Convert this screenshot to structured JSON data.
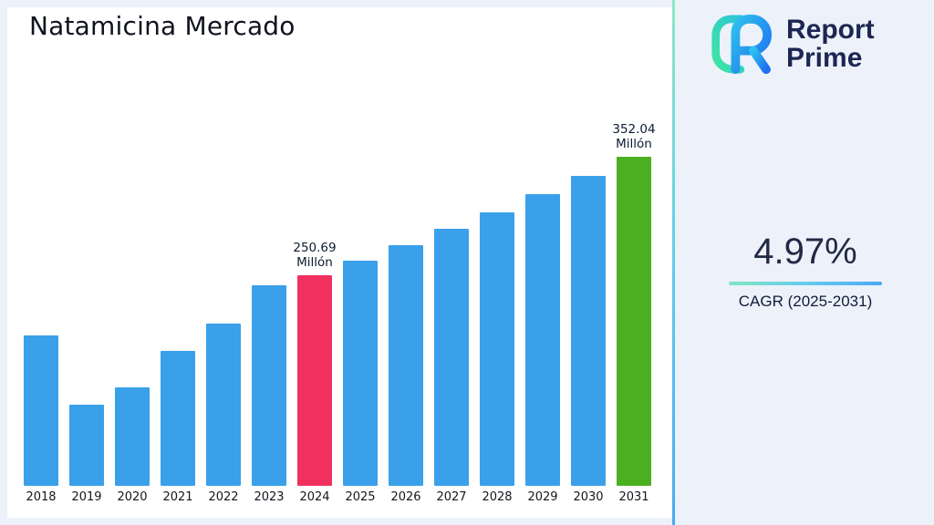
{
  "title": "Natamicina Mercado",
  "logo": {
    "line1": "Report",
    "line2": "Prime"
  },
  "cagr": {
    "value": "4.97%",
    "label": "CAGR (2025-2031)"
  },
  "colors": {
    "background": "#EDF1FA",
    "panel": "#FFFFFF",
    "accent_teal": "#7FE7C4",
    "accent_blue": "#4AA8F2",
    "navy": "#1C2752"
  },
  "chart_data": {
    "type": "bar",
    "title": "Natamicina Mercado",
    "categories": [
      "2018",
      "2019",
      "2020",
      "2021",
      "2022",
      "2023",
      "2024",
      "2025",
      "2026",
      "2027",
      "2028",
      "2029",
      "2030",
      "2031"
    ],
    "values": [
      198.5,
      139.4,
      154.7,
      185.4,
      209.2,
      241.5,
      250.69,
      263.2,
      276.3,
      290.0,
      304.4,
      319.6,
      335.4,
      352.04
    ],
    "unit": "Millón",
    "annotations": {
      "2024": [
        "250.69",
        "Millón"
      ],
      "2031": [
        "352.04",
        "Millón"
      ]
    },
    "bar_color_default": "#3AA0E9",
    "bar_color_overrides": {
      "2024": "#F0305E",
      "2031": "#4BB021"
    },
    "ylim": [
      70,
      355
    ],
    "grid": false,
    "legend": false,
    "xlabel": "",
    "ylabel": ""
  }
}
